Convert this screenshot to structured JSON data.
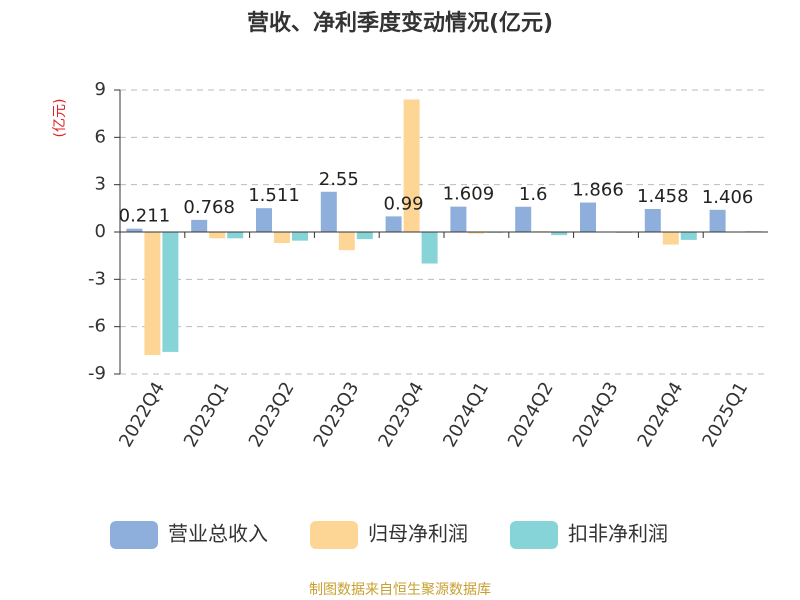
{
  "chart_data": {
    "type": "bar",
    "title": "营收、净利季度变动情况(亿元)",
    "y_label": "(亿元)",
    "source": "制图数据来自恒生聚源数据库",
    "categories": [
      "2022Q4",
      "2023Q1",
      "2023Q2",
      "2023Q3",
      "2023Q4",
      "2024Q1",
      "2024Q2",
      "2024Q3",
      "2024Q4",
      "2025Q1"
    ],
    "series": [
      {
        "name": "营业总收入",
        "color": "#8eaedb",
        "show_labels": true,
        "values": [
          0.211,
          0.768,
          1.511,
          2.55,
          0.99,
          1.609,
          1.6,
          1.866,
          1.458,
          1.406
        ]
      },
      {
        "name": "归母净利润",
        "color": "#fdd695",
        "show_labels": false,
        "values": [
          -7.8,
          -0.4,
          -0.7,
          -1.15,
          8.4,
          -0.1,
          0.05,
          0.03,
          -0.8,
          0.02
        ]
      },
      {
        "name": "扣非净利润",
        "color": "#86d4d8",
        "show_labels": false,
        "values": [
          -7.6,
          -0.4,
          -0.55,
          -0.45,
          -2.0,
          -0.05,
          -0.2,
          -0.05,
          -0.5,
          0.05
        ]
      }
    ],
    "ylim": [
      -9,
      9
    ],
    "yticks": [
      -9,
      -6,
      -3,
      0,
      3,
      6,
      9
    ],
    "grid": true,
    "legend": "bottom"
  }
}
